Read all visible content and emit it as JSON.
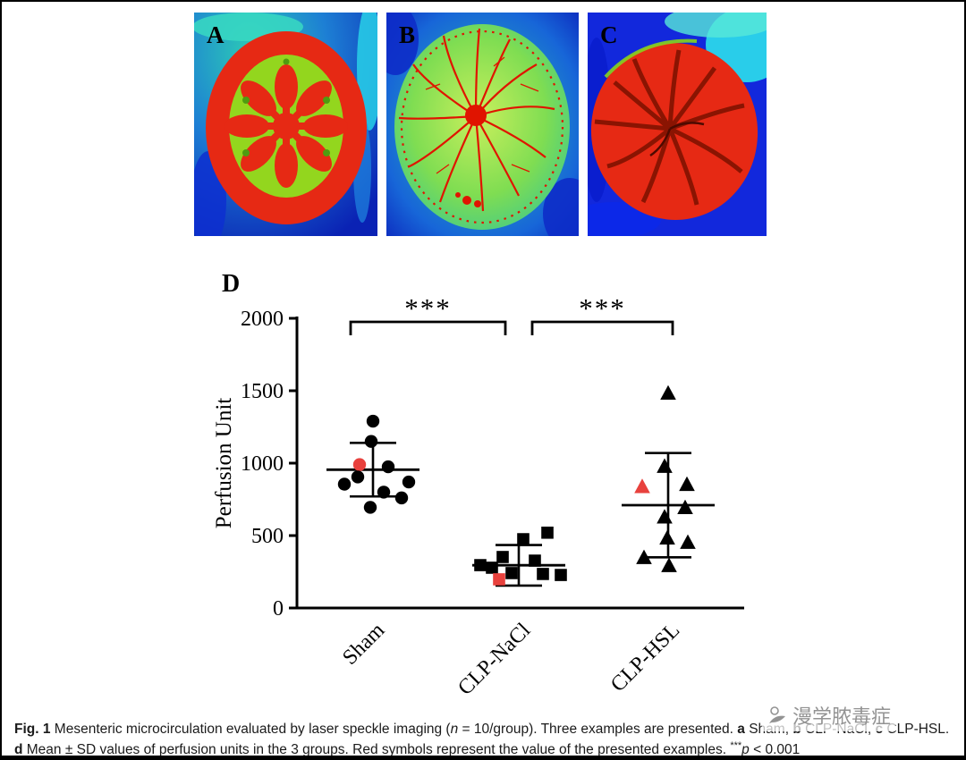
{
  "panels": {
    "a": {
      "label": "A",
      "description": "laser speckle image Sham"
    },
    "b": {
      "label": "B",
      "description": "laser speckle image CLP-NaCl"
    },
    "c": {
      "label": "C",
      "description": "laser speckle image CLP-HSL"
    },
    "d": {
      "label": "D",
      "description": "perfusion scatter plot"
    }
  },
  "chart_data": {
    "type": "scatter",
    "title": "",
    "xlabel": "",
    "ylabel": "Perfusion Unit",
    "ylim": [
      0,
      2000
    ],
    "yticks": [
      0,
      500,
      1000,
      1500,
      2000
    ],
    "categories": [
      "Sham",
      "CLP-NaCl",
      "CLP-HSL"
    ],
    "grid": false,
    "legend_position": "none",
    "marker_color": "#000000",
    "highlight_color": "#e8413d",
    "groups": [
      {
        "name": "Sham",
        "marker": "circle",
        "mean": 955,
        "sd": 185,
        "points": [
          [
            0,
            1290
          ],
          [
            -2,
            1150
          ],
          [
            -15,
            990,
            1
          ],
          [
            17,
            975
          ],
          [
            -17,
            905
          ],
          [
            40,
            870
          ],
          [
            -32,
            855
          ],
          [
            12,
            800
          ],
          [
            32,
            760
          ],
          [
            -3,
            695
          ]
        ]
      },
      {
        "name": "CLP-NaCl",
        "marker": "square",
        "mean": 295,
        "sd": 140,
        "points": [
          [
            32,
            520
          ],
          [
            5,
            475
          ],
          [
            -18,
            352
          ],
          [
            18,
            327
          ],
          [
            -43,
            296
          ],
          [
            -30,
            278
          ],
          [
            -8,
            241
          ],
          [
            27,
            235
          ],
          [
            47,
            228
          ],
          [
            -22,
            198,
            1
          ]
        ]
      },
      {
        "name": "CLP-HSL",
        "marker": "triangle",
        "mean": 710,
        "sd": 360,
        "points": [
          [
            0,
            1480
          ],
          [
            -4,
            975
          ],
          [
            21,
            850
          ],
          [
            -29,
            835,
            1
          ],
          [
            19,
            690
          ],
          [
            -4,
            625
          ],
          [
            -1,
            480
          ],
          [
            22,
            450
          ],
          [
            -27,
            345
          ],
          [
            1,
            290
          ]
        ]
      }
    ],
    "significance": [
      {
        "between": [
          0,
          1
        ],
        "label": "***"
      },
      {
        "between": [
          1,
          2
        ],
        "label": "***"
      }
    ],
    "footnote": "***p < 0.001"
  },
  "caption": {
    "segments": [
      {
        "t": "Fig. 1",
        "b": true
      },
      {
        "t": " Mesenteric microcirculation evaluated by laser speckle imaging ("
      },
      {
        "t": "n",
        "i": true
      },
      {
        "t": " = 10/group). Three examples are presented. "
      },
      {
        "t": "a",
        "b": true
      },
      {
        "t": " Sham, "
      },
      {
        "t": "b",
        "b": true
      },
      {
        "t": " CLP-NaCl, "
      },
      {
        "t": "c",
        "b": true
      },
      {
        "t": " CLP-HSL. "
      },
      {
        "t": "d",
        "b": true
      },
      {
        "t": " Mean ± SD values of perfusion units in the 3 groups. Red symbols represent the value of the presented examples. "
      },
      {
        "t": "***",
        "sup": true
      },
      {
        "t": "p",
        "i": true
      },
      {
        "t": " < 0.001"
      }
    ]
  },
  "watermark": {
    "text": "漫学脓毒症"
  }
}
